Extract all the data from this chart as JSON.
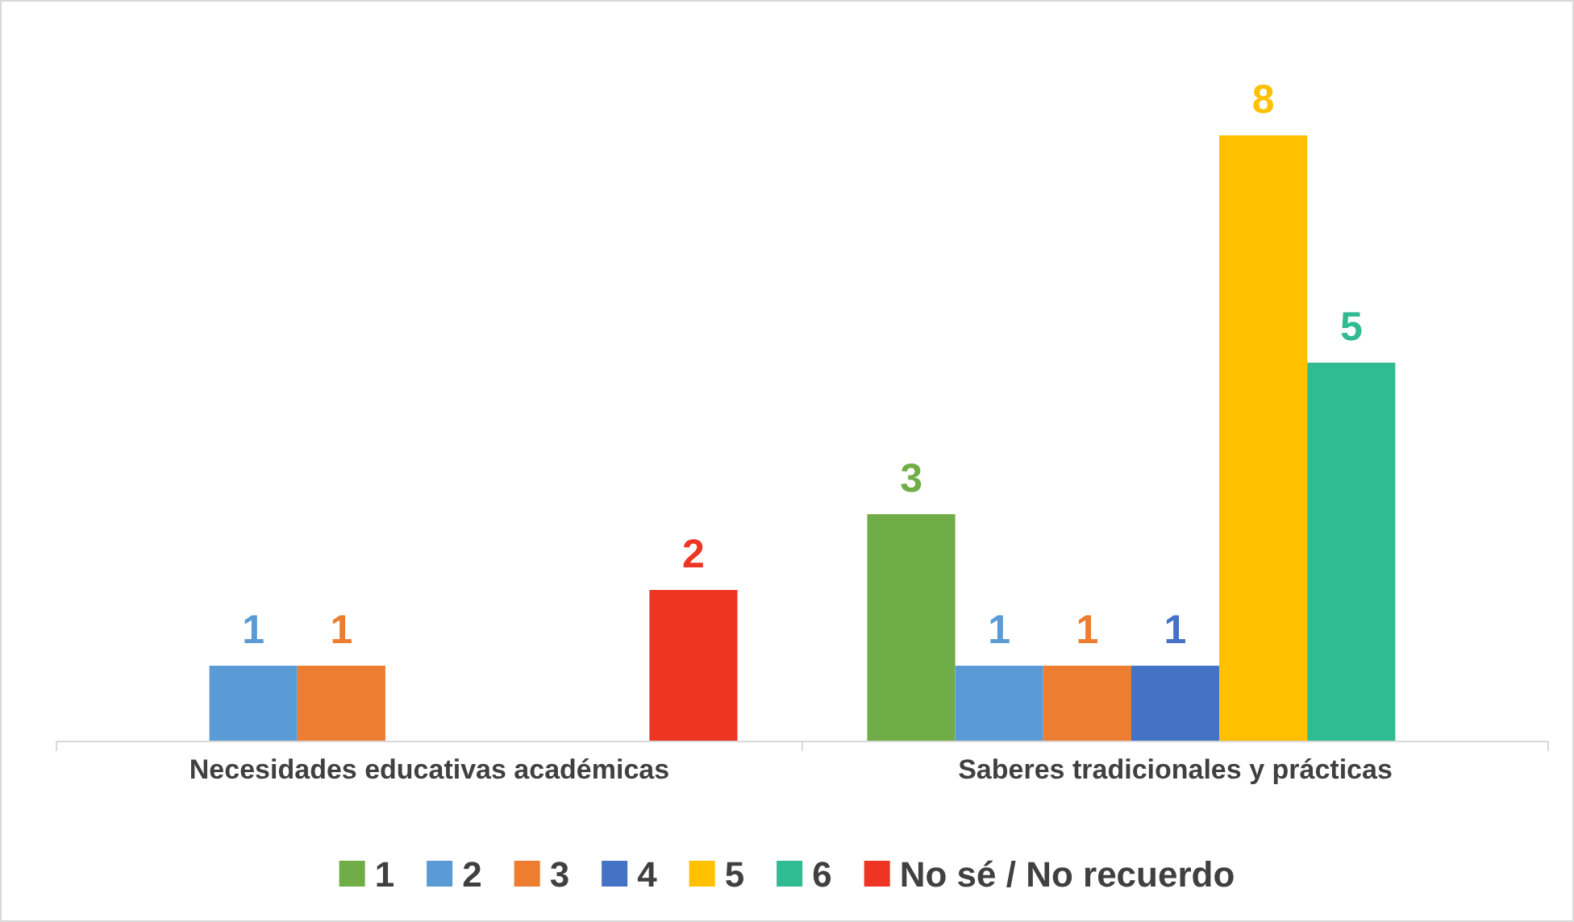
{
  "chart_data": {
    "type": "bar",
    "categories": [
      "Necesidades educativas académicas",
      "Saberes tradicionales y prácticas"
    ],
    "series": [
      {
        "name": "1",
        "color": "#70ad47",
        "values": [
          null,
          3
        ]
      },
      {
        "name": "2",
        "color": "#5b9bd5",
        "values": [
          1,
          1
        ]
      },
      {
        "name": "3",
        "color": "#ed7d31",
        "values": [
          1,
          1
        ]
      },
      {
        "name": "4",
        "color": "#4472c4",
        "values": [
          null,
          1
        ]
      },
      {
        "name": "5",
        "color": "#ffc000",
        "values": [
          null,
          8
        ]
      },
      {
        "name": "6",
        "color": "#31bb93",
        "values": [
          null,
          5
        ]
      },
      {
        "name": "No sé / No recuerdo",
        "color": "#ee3524",
        "values": [
          2,
          null
        ]
      }
    ],
    "data_labels": true,
    "legend": "bottom",
    "grid": false,
    "tick_labels": "x"
  }
}
